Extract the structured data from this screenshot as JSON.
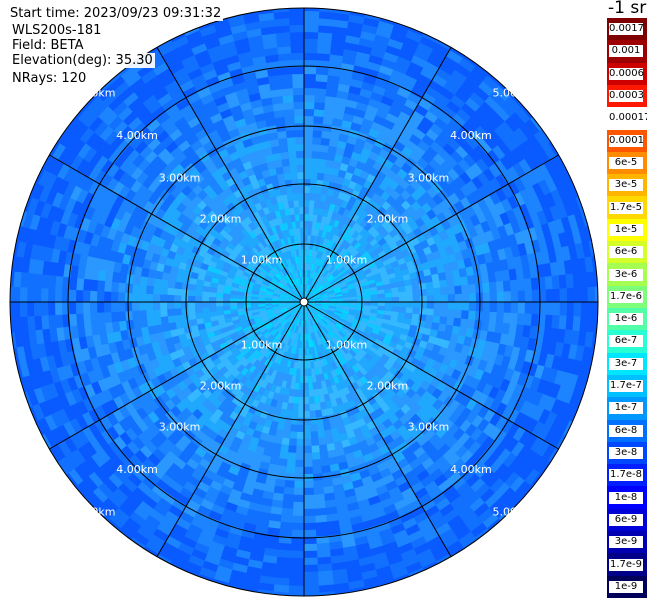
{
  "info": {
    "start_time": "Start time: 2023/09/23 09:31:32",
    "instrument": "WLS200s-181",
    "field": "Field: BETA",
    "elevation": "Elevation(deg): 35.30",
    "nrays": "NRays: 120"
  },
  "colorbar": {
    "units": "-1 sr",
    "labels": [
      "0.0017",
      "0.001",
      "0.0006",
      "0.0003",
      "0.00017",
      "0.0001",
      "6e-5",
      "3e-5",
      "1.7e-5",
      "1e-5",
      "6e-6",
      "3e-6",
      "1.7e-6",
      "1e-6",
      "6e-7",
      "3e-7",
      "1.7e-7",
      "1e-7",
      "6e-8",
      "3e-8",
      "1.7e-8",
      "1e-8",
      "6e-9",
      "3e-9",
      "1.7e-9",
      "1e-9"
    ],
    "colors": [
      "#7f0000",
      "#9d0000",
      "#cd0000",
      "#ff1800",
      "#ffffff",
      "#ff5600",
      "#ff8c00",
      "#ffb400",
      "#ffd800",
      "#ffff00",
      "#d4ff28",
      "#a6ff50",
      "#7dff7a",
      "#52ffa6",
      "#28ffd2",
      "#00e6ff",
      "#00c0ff",
      "#0098ff",
      "#0070ff",
      "#0048ff",
      "#0020ff",
      "#0000ff",
      "#0000d8",
      "#0000b0",
      "#000088",
      "#00005a"
    ]
  },
  "ppi": {
    "range_rings": [
      "1.00km",
      "2.00km",
      "3.00km",
      "4.00km",
      "5.00km"
    ],
    "spoke_directions_deg": [
      0,
      30,
      60,
      90,
      120,
      150,
      180,
      210,
      240,
      270,
      300,
      330
    ]
  }
}
